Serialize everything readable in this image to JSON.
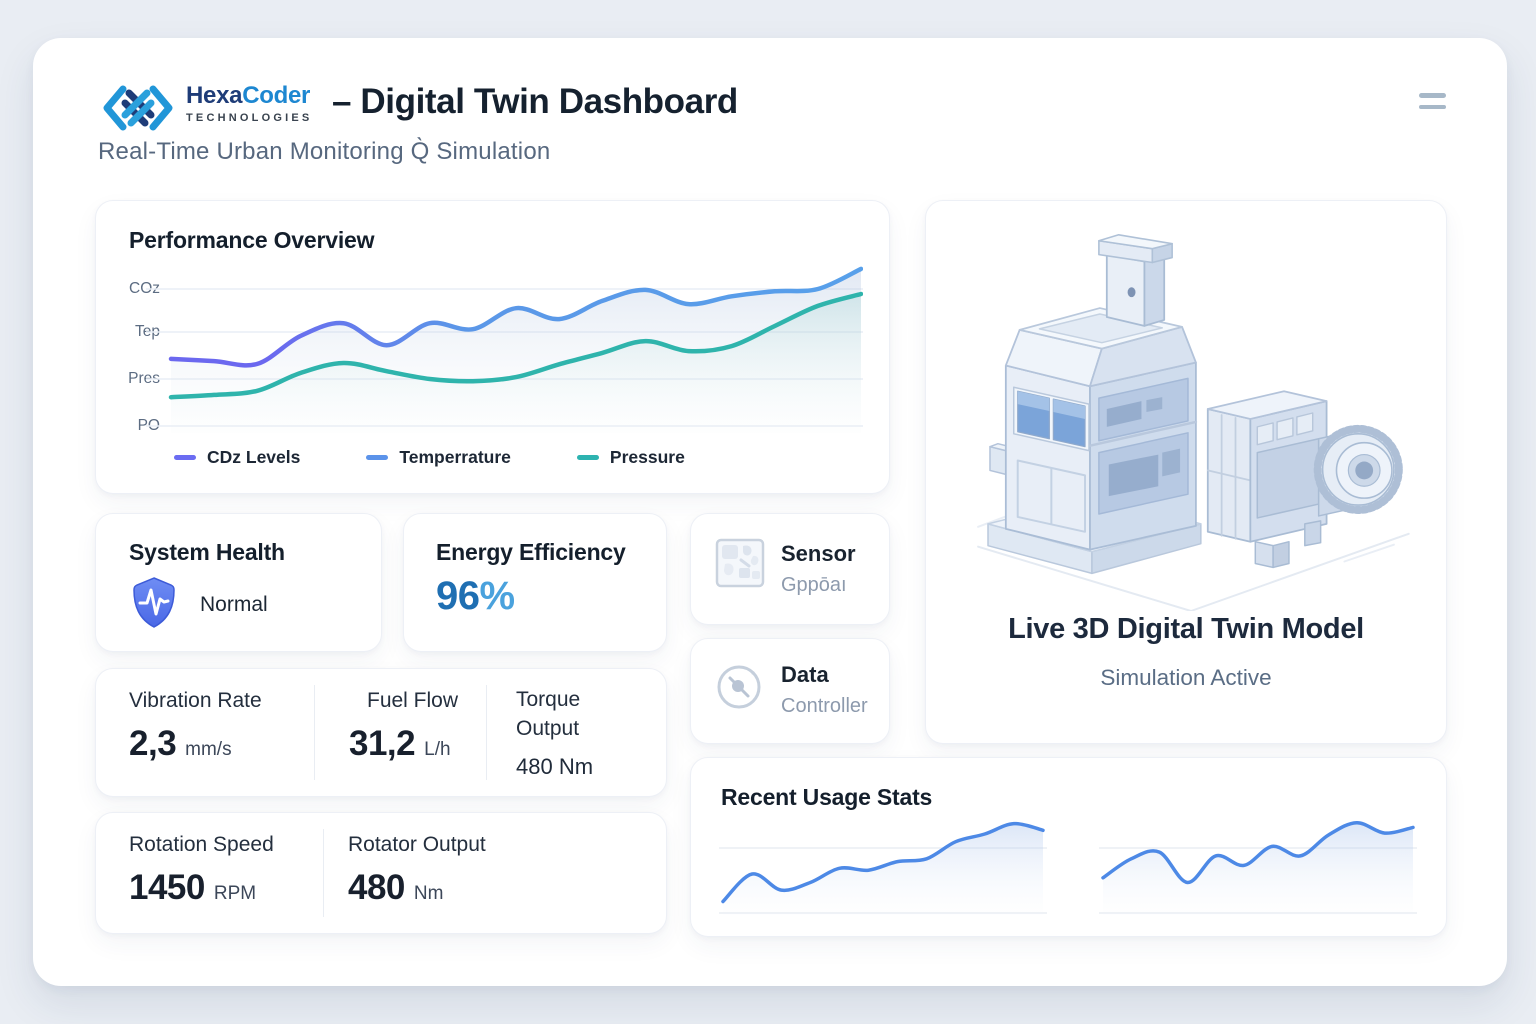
{
  "header": {
    "brand": {
      "name_primary": "Hexa",
      "name_secondary": "Coder",
      "tagline": "TECHNOLOGIES"
    },
    "title": "– Digital Twin Dashboard",
    "subtitle": "Real-Time Urban Monitoring Q̀ Simulation"
  },
  "performance": {
    "title": "Performance Overview",
    "y_axis_labels": [
      "COz",
      "Tep",
      "Pres",
      "PO"
    ],
    "legend": [
      {
        "label": "CDz Levels",
        "color": "#6b6cf2"
      },
      {
        "label": "Temperrature",
        "color": "#5b93ea"
      },
      {
        "label": "Pressure",
        "color": "#2db3b0"
      }
    ]
  },
  "status_cards": {
    "system_health": {
      "title": "System Health",
      "value": "Normal",
      "icon": "shield-pulse-icon",
      "icon_color": "#5377ec"
    },
    "energy_efficiency": {
      "title": "Energy Efficiency",
      "value": "96",
      "unit": "%",
      "value_color": "#1f6fb2",
      "unit_color": "#4aa2dd"
    }
  },
  "device_tiles": {
    "sensor": {
      "title": "Sensor",
      "subtitle": "Gppōaı",
      "icon": "sensor-chip-icon"
    },
    "data_controller": {
      "title": "Data",
      "subtitle": "Controller",
      "icon": "gauge-needle-icon"
    }
  },
  "metrics": {
    "vibration_rate": {
      "label": "Vibration Rate",
      "value": "2,3",
      "unit": "mm/s"
    },
    "fuel_flow": {
      "label": "Fuel Flow",
      "value": "31,2",
      "unit": "L/h"
    },
    "torque_output": {
      "label": "Torque Output",
      "value": "480 Nm"
    },
    "rotation_speed": {
      "label": "Rotation Speed",
      "value": "1450",
      "unit": "RPM"
    },
    "rotator_output": {
      "label": "Rotator Output",
      "value": "480",
      "unit": "Nm"
    }
  },
  "twin_panel": {
    "title": "Live 3D Digital Twin Model",
    "subtitle": "Simulation Active",
    "illustration": "isometric-factory-building-with-chimney-and-turbine-unit"
  },
  "usage_panel": {
    "title": "Recent Usage Stats"
  },
  "colors": {
    "background": "#e9edf3",
    "surface": "#ffffff",
    "heading_text": "#141f2c",
    "muted_text": "#57687f",
    "line_indigo": "#6b68ef",
    "line_blue": "#58a0ea",
    "line_teal": "#2fb4ac",
    "sparkline_blue": "#4d89e6",
    "hamburger": "#a7b8c8"
  },
  "chart_data": [
    {
      "type": "line",
      "title": "Performance Overview",
      "x": [
        0,
        1,
        2,
        3,
        4,
        5,
        6,
        7,
        8,
        9,
        10,
        11,
        12,
        13,
        14,
        15,
        16
      ],
      "y_tick_labels": [
        "PO",
        "Pres",
        "Tep",
        "COz"
      ],
      "y_tick_values": [
        0,
        1,
        2,
        3
      ],
      "ylim": [
        0,
        3.6
      ],
      "grid": true,
      "legend_position": "bottom",
      "legend_entries": [
        "CDz Levels",
        "Temperrature",
        "Pressure"
      ],
      "series": [
        {
          "name": "CDz Levels / Temperrature (upper line, indigo-to-blue gradient)",
          "color_start": "#6b68ef",
          "color_end": "#58a0ea",
          "values": [
            1.47,
            1.42,
            1.36,
            1.97,
            2.25,
            1.77,
            2.25,
            2.12,
            2.58,
            2.34,
            2.74,
            2.98,
            2.67,
            2.84,
            2.95,
            3.0,
            3.44
          ]
        },
        {
          "name": "Pressure",
          "color": "#2fb4ac",
          "values": [
            0.63,
            0.68,
            0.77,
            1.16,
            1.38,
            1.2,
            1.03,
            0.98,
            1.07,
            1.35,
            1.6,
            1.86,
            1.64,
            1.75,
            2.19,
            2.63,
            2.89
          ]
        }
      ]
    },
    {
      "type": "line",
      "title": "Recent Usage Stats — left sparkline",
      "x": [
        0,
        1,
        2,
        3,
        4,
        5,
        6,
        7,
        8,
        9,
        10,
        11
      ],
      "values": [
        10,
        39,
        22,
        30,
        45,
        43,
        52,
        55,
        73,
        81,
        92,
        85
      ],
      "ylim": [
        0,
        100
      ],
      "color": "#4d89e6",
      "area_fill": true,
      "axes_hidden": true
    },
    {
      "type": "line",
      "title": "Recent Usage Stats — right sparkline",
      "x": [
        0,
        1,
        2,
        3,
        4,
        5,
        6,
        7,
        8,
        9,
        10,
        11
      ],
      "values": [
        35,
        55,
        62,
        30,
        58,
        48,
        68,
        58,
        80,
        93,
        82,
        88
      ],
      "ylim": [
        0,
        100
      ],
      "color": "#4d89e6",
      "area_fill": true,
      "axes_hidden": true
    }
  ]
}
